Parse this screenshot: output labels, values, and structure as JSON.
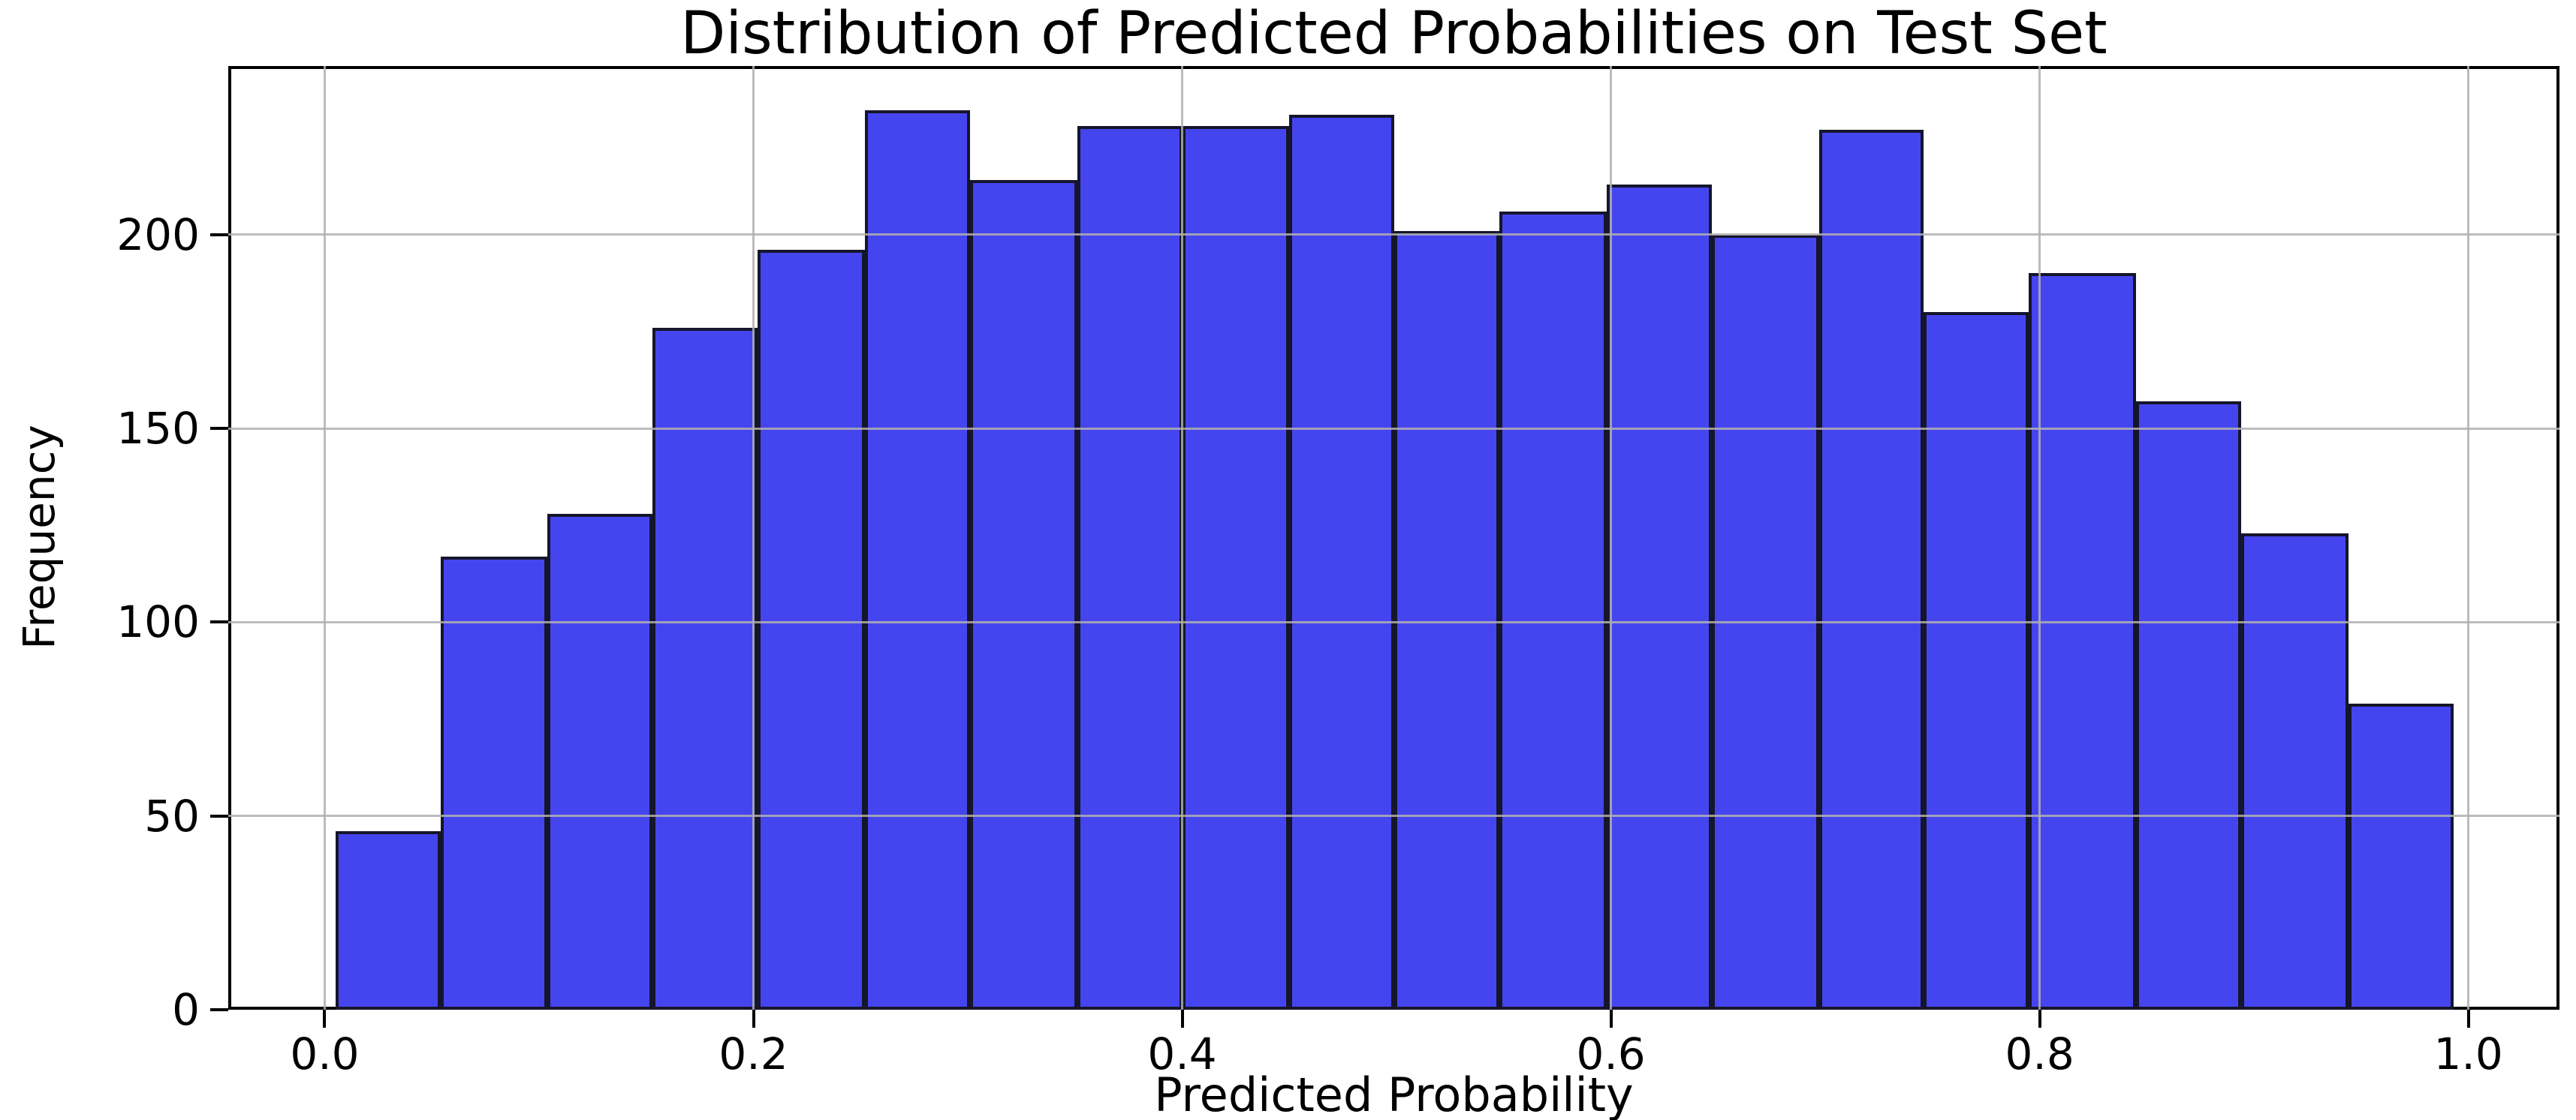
{
  "figure": {
    "background": "#ffffff"
  },
  "chart_data": {
    "type": "bar",
    "subtype": "histogram",
    "title": "Distribution of Predicted Probabilities on Test Set",
    "xlabel": "Predicted Probability",
    "ylabel": "Frequency",
    "bin_edges": [
      0.005,
      0.054,
      0.104,
      0.153,
      0.202,
      0.252,
      0.301,
      0.351,
      0.4,
      0.45,
      0.499,
      0.548,
      0.598,
      0.647,
      0.697,
      0.746,
      0.795,
      0.845,
      0.894,
      0.944,
      0.993
    ],
    "frequencies": [
      46,
      117,
      128,
      176,
      196,
      232,
      214,
      228,
      228,
      231,
      201,
      206,
      213,
      200,
      227,
      180,
      190,
      157,
      123,
      79
    ],
    "xticks": [
      0.0,
      0.2,
      0.4,
      0.6,
      0.8,
      1.0
    ],
    "xtick_labels": [
      "0.0",
      "0.2",
      "0.4",
      "0.6",
      "0.8",
      "1.0"
    ],
    "yticks": [
      0,
      50,
      100,
      150,
      200
    ],
    "ytick_labels": [
      "0",
      "50",
      "100",
      "150",
      "200"
    ],
    "xlim": [
      -0.045,
      1.0425
    ],
    "ylim": [
      0,
      243.5
    ],
    "grid": true,
    "legend": false,
    "bar_fill": "#4545EF",
    "bar_edge": "#15152B",
    "grid_color": "#B0B0B0",
    "spine_color": "#000000",
    "text_color": "#000000"
  }
}
